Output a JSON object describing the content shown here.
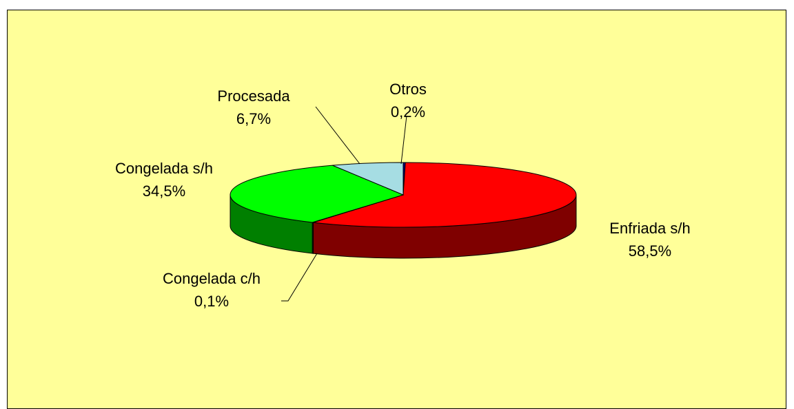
{
  "chart_data": {
    "type": "pie3d",
    "categories": [
      "Otros",
      "Enfriada s/h",
      "Congelada c/h",
      "Congelada s/h",
      "Procesada"
    ],
    "values": [
      0.2,
      58.5,
      0.1,
      34.5,
      6.7
    ],
    "value_labels": [
      "0,2%",
      "58,5%",
      "0,1%",
      "34,5%",
      "6,7%"
    ],
    "colors": [
      "#000080",
      "#ff0000",
      "#006400",
      "#00ff00",
      "#a6dde3"
    ]
  }
}
